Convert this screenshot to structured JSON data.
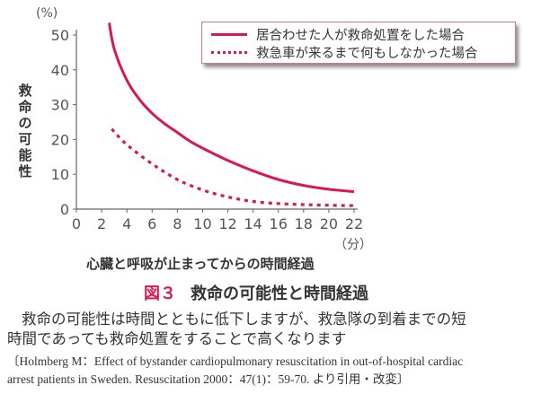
{
  "chart_data": {
    "type": "line",
    "title": "救命の可能性と時間経過",
    "figure_number": "図３",
    "xlabel": "心臓と呼吸が止まってからの時間経過",
    "x_unit": "（分）",
    "ylabel": "救命の可能性",
    "y_unit": "(%)",
    "xlim": [
      0,
      22
    ],
    "ylim": [
      0,
      50
    ],
    "x_ticks": [
      0,
      2,
      4,
      6,
      8,
      10,
      12,
      14,
      16,
      18,
      20,
      22
    ],
    "y_ticks": [
      0,
      10,
      20,
      30,
      40,
      50
    ],
    "grid": false,
    "legend_position": "upper right",
    "series": [
      {
        "name": "居合わせた人が救命処置をした場合",
        "style": "solid",
        "color": "#d9184f",
        "x": [
          2.6,
          3,
          4,
          5,
          6,
          7,
          8,
          9,
          10,
          12,
          14,
          16,
          18,
          20,
          22
        ],
        "values": [
          53.5,
          46,
          37,
          31.5,
          27.5,
          24.5,
          22,
          19.5,
          17.5,
          14,
          11,
          8.5,
          6.8,
          5.7,
          5
        ]
      },
      {
        "name": "救急車が来るまで何もしなかった場合",
        "style": "dotted",
        "color": "#d9184f",
        "x": [
          2.8,
          4,
          6,
          8,
          10,
          12,
          14,
          16,
          18,
          20,
          22
        ],
        "values": [
          23,
          18.5,
          13,
          8.5,
          5.5,
          3.5,
          2.2,
          1.6,
          1.3,
          1.1,
          1
        ]
      }
    ]
  },
  "labels": {
    "y_unit": "(%)",
    "y_axis_chars": [
      "救",
      "命",
      "の",
      "可",
      "能",
      "性"
    ],
    "x_unit": "（分）",
    "x_axis_title": "心臓と呼吸が止まってからの時間経過",
    "legend": [
      "居合わせた人が救命処置をした場合",
      "救急車が来るまで何もしなかった場合"
    ]
  },
  "caption": {
    "figure_number": "図３",
    "title": "救命の可能性と時間経過",
    "description_line1": "救命の可能性は時間とともに低下しますが、救急隊の到着までの短",
    "description_line2": "時間であっても救命処置をすることで高くなります",
    "citation_line1": "〔Holmberg M：Effect of bystander cardiopulmonary resuscitation in out-of-hospital cardiac",
    "citation_line2": "arrest patients in Sweden. Resuscitation 2000：47(1)：59-70. より引用・改変〕"
  },
  "colors": {
    "accent": "#d9184f",
    "axis": "#666666",
    "text": "#333333"
  }
}
